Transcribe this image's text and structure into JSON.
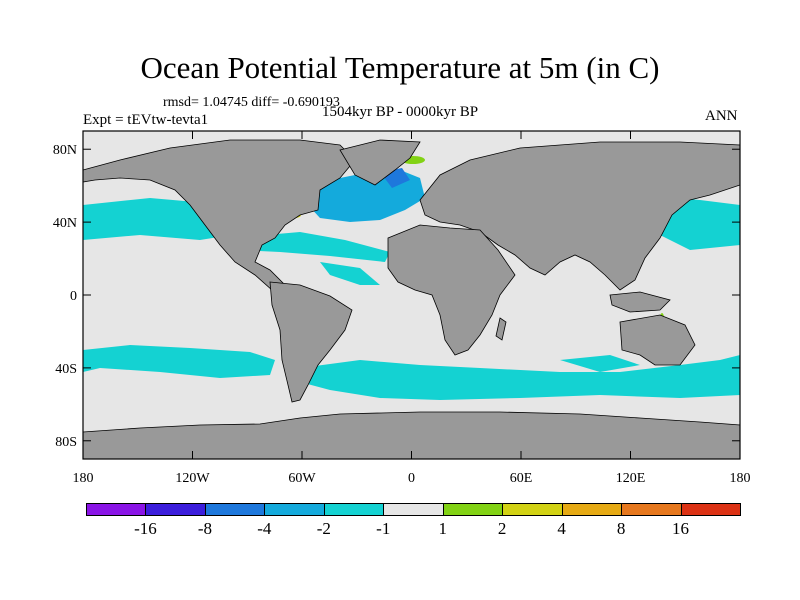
{
  "title": "Ocean Potential Temperature at 5m (in C)",
  "stats_line": "rmsd= 1.04745 diff= -0.690193",
  "experiment": "Expt = tEVtw-tevta1",
  "period": "1504kyr BP - 0000kyr BP",
  "season": "ANN",
  "map": {
    "lon_range": [
      -180,
      180
    ],
    "lat_range": [
      -90,
      90
    ],
    "lat_ticks": [
      {
        "value": 80,
        "label": "80N"
      },
      {
        "value": 40,
        "label": "40N"
      },
      {
        "value": 0,
        "label": "0"
      },
      {
        "value": -40,
        "label": "40S"
      },
      {
        "value": -80,
        "label": "80S"
      }
    ],
    "lon_ticks": [
      {
        "value": -180,
        "label": "180"
      },
      {
        "value": -120,
        "label": "120W"
      },
      {
        "value": -60,
        "label": "60W"
      },
      {
        "value": 0,
        "label": "0"
      },
      {
        "value": 60,
        "label": "60E"
      },
      {
        "value": 120,
        "label": "120E"
      },
      {
        "value": 180,
        "label": "180"
      }
    ],
    "colors": {
      "land": "#999999",
      "ocean_neutral": "#e6e6e6",
      "coast": "#000000"
    }
  },
  "colorbar": {
    "boxes": [
      "#8a14e6",
      "#3c1edc",
      "#1e78dc",
      "#14aadc",
      "#14d2d2",
      "#e6e6e6",
      "#82d214",
      "#d2d214",
      "#e6aa14",
      "#e6781e",
      "#dc3214"
    ],
    "labels": [
      "-16",
      "-8",
      "-4",
      "-2",
      "-1",
      "1",
      "2",
      "4",
      "8",
      "16"
    ]
  }
}
